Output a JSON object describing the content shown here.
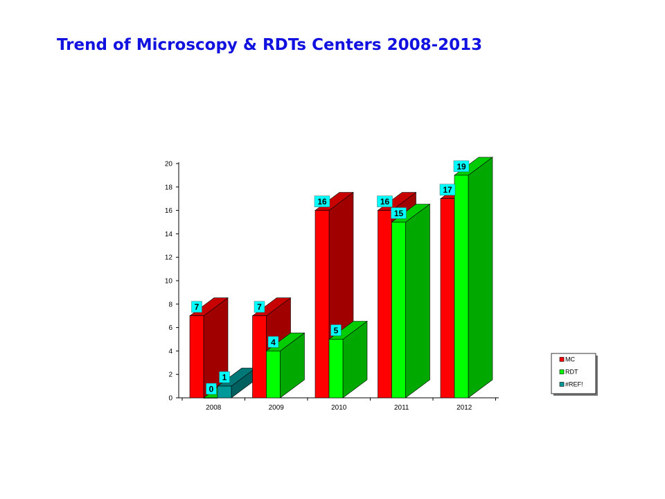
{
  "page": {
    "title": "Trend of Microscopy & RDTs Centers 2008-2013"
  },
  "chart_data": {
    "type": "bar",
    "title": "",
    "xlabel": "",
    "ylabel": "",
    "ylim": [
      0,
      20
    ],
    "y_ticks": [
      "0",
      "2",
      "4",
      "6",
      "8",
      "10",
      "12",
      "14",
      "16",
      "18",
      "20"
    ],
    "categories": [
      "2008",
      "2009",
      "2010",
      "2011",
      "2012"
    ],
    "series": [
      {
        "name": "MC",
        "values": [
          7,
          7,
          16,
          16,
          17
        ],
        "color": "#ff0000",
        "side_color": "#a00000",
        "top_color": "#c80000"
      },
      {
        "name": "RDT",
        "values": [
          0,
          4,
          5,
          15,
          19
        ],
        "color": "#00ff00",
        "side_color": "#00a800",
        "top_color": "#00cc00"
      },
      {
        "name": "#REF!",
        "values": [
          1,
          null,
          null,
          null,
          null
        ],
        "color": "#009999",
        "side_color": "#006060",
        "top_color": "#007878"
      }
    ],
    "data_labels": true,
    "data_label_background": "#00ffff",
    "legend_position": "right",
    "grid": false,
    "style": "3d-column"
  }
}
